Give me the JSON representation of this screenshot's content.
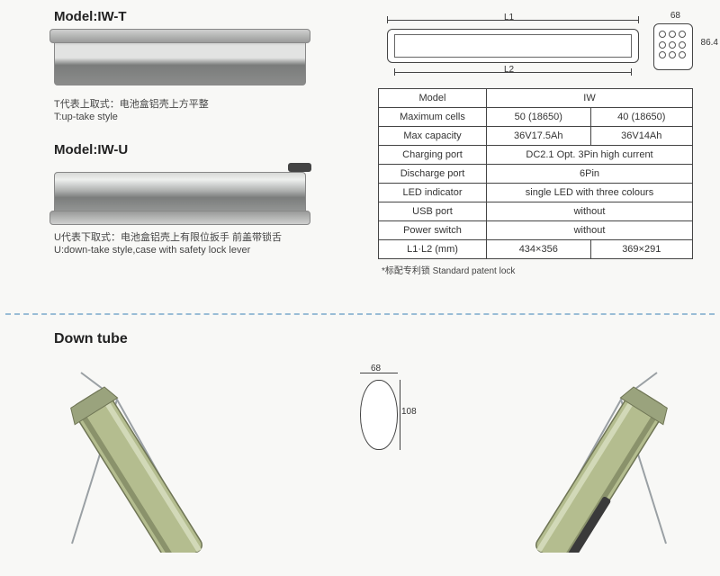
{
  "models": {
    "t": {
      "title": "Model:IW-T",
      "caption_cn": "T代表上取式：电池盒铝壳上方平整",
      "caption_en": "T:up-take style"
    },
    "u": {
      "title": "Model:IW-U",
      "caption_cn": "U代表下取式：电池盒铝壳上有限位扳手 前盖带锁舌",
      "caption_en": "U:down-take style,case with safety lock lever"
    }
  },
  "dimension_drawing": {
    "L1_label": "L1",
    "L2_label": "L2",
    "end_width": "68",
    "end_height": "86.4"
  },
  "spec_table": {
    "header_model": "Model",
    "header_value": "IW",
    "rows": [
      {
        "label": "Maximum cells",
        "cells": [
          "50 (18650)",
          "40 (18650)"
        ]
      },
      {
        "label": "Max capacity",
        "cells": [
          "36V17.5Ah",
          "36V14Ah"
        ]
      },
      {
        "label": "Charging port",
        "cells": [
          "DC2.1  Opt. 3Pin high current"
        ]
      },
      {
        "label": "Discharge port",
        "cells": [
          "6Pin"
        ]
      },
      {
        "label": "LED indicator",
        "cells": [
          "single LED with three colours"
        ]
      },
      {
        "label": "USB port",
        "cells": [
          "without"
        ]
      },
      {
        "label": "Power switch",
        "cells": [
          "without"
        ]
      },
      {
        "label": "L1·L2 (mm)",
        "cells": [
          "434×356",
          "369×291"
        ]
      }
    ],
    "footnote": "*标配专利锁  Standard patent lock",
    "colors": {
      "border": "#444444",
      "text": "#333333",
      "bg": "#ffffff"
    }
  },
  "down_tube": {
    "title": "Down tube",
    "cross_width": "68",
    "cross_height": "108",
    "tube_color": "#b4bd8f",
    "tube_edge": "#6f7555",
    "frame_line": "#9aa0a4"
  }
}
